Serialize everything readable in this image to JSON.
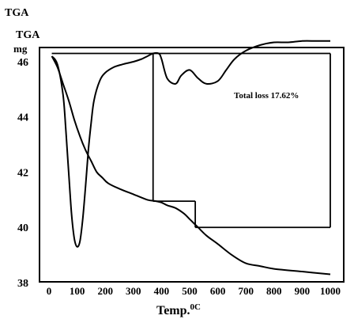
{
  "chart_data": {
    "type": "line",
    "title": "TGA",
    "ylabel": "TGA",
    "yunit": "mg",
    "xlabel": "Temp.",
    "xlabel_unit": "0C",
    "xlim": [
      0,
      1000
    ],
    "ylim": [
      38,
      46.4
    ],
    "x_ticks": [
      "0",
      "100",
      "200",
      "300",
      "400",
      "500",
      "600",
      "700",
      "800",
      "900",
      "1000"
    ],
    "y_ticks": [
      "38",
      "40",
      "42",
      "44",
      "46"
    ],
    "grid": false,
    "annotation": "Total loss 17.62%",
    "series": [
      {
        "role": "tga",
        "x": [
          10,
          30,
          50,
          70,
          90,
          110,
          130,
          150,
          170,
          190,
          210,
          250,
          300,
          350,
          380,
          400,
          420,
          450,
          480,
          500,
          530,
          560,
          600,
          650,
          700,
          750,
          800,
          900,
          1000
        ],
        "y": [
          46.2,
          45.8,
          45.2,
          44.6,
          43.9,
          43.3,
          42.8,
          42.4,
          42.0,
          41.8,
          41.6,
          41.4,
          41.2,
          41.0,
          40.95,
          40.9,
          40.8,
          40.7,
          40.5,
          40.3,
          40.0,
          39.7,
          39.4,
          39.0,
          38.7,
          38.6,
          38.5,
          38.4,
          38.3
        ]
      },
      {
        "role": "derivative",
        "x": [
          10,
          30,
          50,
          60,
          70,
          80,
          90,
          100,
          110,
          120,
          130,
          140,
          150,
          160,
          180,
          200,
          230,
          260,
          300,
          330,
          350,
          370,
          390,
          400,
          420,
          450,
          470,
          500,
          530,
          560,
          600,
          630,
          660,
          700,
          750,
          800,
          850,
          900,
          950,
          1000
        ],
        "y": [
          46.2,
          45.9,
          44.8,
          43.5,
          42.0,
          40.5,
          39.6,
          39.3,
          39.5,
          40.3,
          41.5,
          42.8,
          43.8,
          44.6,
          45.3,
          45.6,
          45.8,
          45.9,
          46.0,
          46.1,
          46.2,
          46.3,
          46.3,
          46.1,
          45.4,
          45.2,
          45.5,
          45.7,
          45.4,
          45.2,
          45.3,
          45.7,
          46.1,
          46.4,
          46.6,
          46.7,
          46.7,
          46.75,
          46.75,
          46.75
        ]
      }
    ],
    "guides": {
      "hlines": [
        {
          "y": 46.3,
          "x": [
            10,
            1000
          ]
        },
        {
          "y": 40.95,
          "x": [
            370,
            520
          ]
        },
        {
          "y": 40.0,
          "x": [
            520,
            1000
          ]
        }
      ],
      "vlines": [
        {
          "x": 370,
          "y": [
            40.95,
            46.3
          ]
        },
        {
          "x": 520,
          "y": [
            40.0,
            40.95
          ]
        },
        {
          "x": 1000,
          "y": [
            40.0,
            46.3
          ]
        }
      ]
    }
  }
}
